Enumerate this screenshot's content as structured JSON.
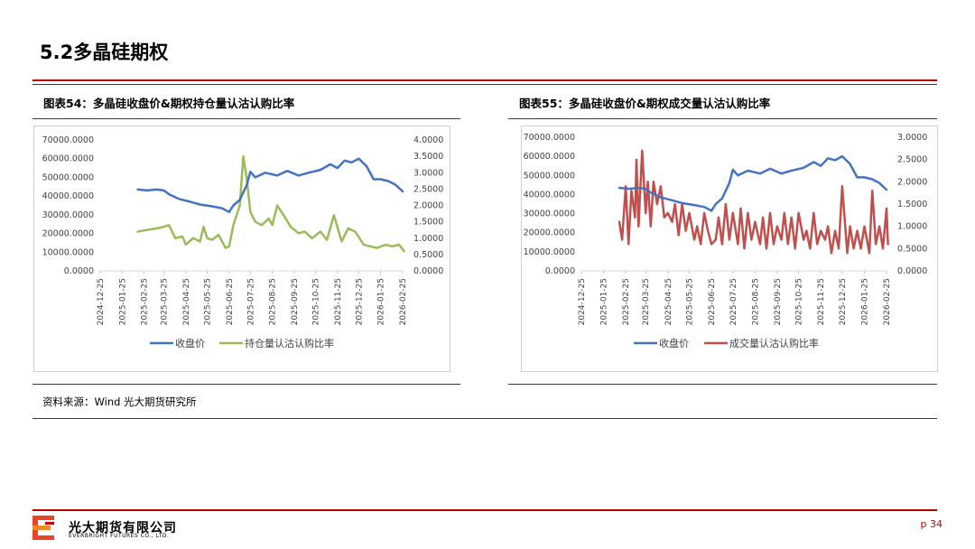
{
  "section_title": "5.2多晶硅期权",
  "source": "资料来源：Wind 光大期货研究所",
  "footer": {
    "company_cn": "光大期货有限公司",
    "company_en": "EVERBRIGHT FUTURES CO., LTD.",
    "page": "p 34"
  },
  "colors": {
    "accent": "#c00000",
    "price": "#4472c4",
    "oi_ratio": "#9bbb59",
    "vol_ratio": "#c0504d"
  },
  "chart_data": [
    {
      "type": "line",
      "title": "图表54：多晶硅收盘价&期权持仓量认沽认购比率",
      "x_ticks": [
        "2024-12-25",
        "2025-01-25",
        "2025-02-25",
        "2025-03-25",
        "2025-04-25",
        "2025-05-25",
        "2025-06-25",
        "2025-07-25",
        "2025-08-25",
        "2025-09-25",
        "2025-10-25",
        "2025-11-25",
        "2025-12-25",
        "2026-01-25",
        "2026-02-25"
      ],
      "y_left": {
        "min": 0,
        "max": 70000,
        "ticks": [
          "0.0000",
          "10000.0000",
          "20000.0000",
          "30000.0000",
          "40000.0000",
          "50000.0000",
          "60000.0000",
          "70000.0000"
        ]
      },
      "y_right": {
        "min": 0,
        "max": 4,
        "ticks": [
          "0.0000",
          "0.5000",
          "1.0000",
          "1.5000",
          "2.0000",
          "2.5000",
          "3.0000",
          "3.5000",
          "4.0000"
        ]
      },
      "legend": [
        "收盘价",
        "持仓量认沽认购比率"
      ],
      "legend_position": "bottom",
      "series": [
        {
          "name": "收盘价",
          "axis": "left",
          "x": [
            "2025-02-16",
            "2025-03-01",
            "2025-03-15",
            "2025-03-25",
            "2025-04-01",
            "2025-04-15",
            "2025-05-01",
            "2025-05-15",
            "2025-06-01",
            "2025-06-15",
            "2025-06-25",
            "2025-07-01",
            "2025-07-10",
            "2025-07-20",
            "2025-07-25",
            "2025-08-01",
            "2025-08-15",
            "2025-09-01",
            "2025-09-15",
            "2025-10-01",
            "2025-10-15",
            "2025-11-01",
            "2025-11-15",
            "2025-11-25",
            "2025-12-05",
            "2025-12-15",
            "2025-12-25",
            "2026-01-05",
            "2026-01-15",
            "2026-01-25",
            "2026-02-05",
            "2026-02-15",
            "2026-02-25"
          ],
          "values": [
            43500,
            43000,
            43500,
            43000,
            41000,
            38500,
            37000,
            35500,
            34500,
            33500,
            31500,
            35000,
            38000,
            46000,
            53000,
            50000,
            52500,
            51000,
            53500,
            51000,
            52500,
            54000,
            57000,
            55000,
            59000,
            58000,
            60000,
            56000,
            49000,
            49000,
            48000,
            46000,
            42500
          ]
        },
        {
          "name": "持仓量认沽认购比率",
          "axis": "right",
          "x": [
            "2025-02-16",
            "2025-03-01",
            "2025-03-15",
            "2025-03-25",
            "2025-04-01",
            "2025-04-10",
            "2025-04-20",
            "2025-04-25",
            "2025-05-05",
            "2025-05-15",
            "2025-05-20",
            "2025-05-25",
            "2025-06-01",
            "2025-06-10",
            "2025-06-20",
            "2025-06-25",
            "2025-07-01",
            "2025-07-10",
            "2025-07-15",
            "2025-07-20",
            "2025-07-25",
            "2025-08-01",
            "2025-08-10",
            "2025-08-20",
            "2025-08-25",
            "2025-09-01",
            "2025-09-10",
            "2025-09-20",
            "2025-10-01",
            "2025-10-10",
            "2025-10-20",
            "2025-11-01",
            "2025-11-10",
            "2025-11-20",
            "2025-12-01",
            "2025-12-10",
            "2025-12-20",
            "2026-01-01",
            "2026-01-10",
            "2026-01-20",
            "2026-02-01",
            "2026-02-10",
            "2026-02-20",
            "2026-02-27"
          ],
          "values": [
            1.2,
            1.25,
            1.3,
            1.35,
            1.4,
            1.0,
            1.05,
            0.8,
            1.0,
            0.9,
            1.35,
            1.0,
            0.95,
            1.1,
            0.7,
            0.75,
            1.4,
            2.0,
            3.5,
            2.8,
            1.8,
            1.5,
            1.4,
            1.6,
            1.4,
            2.0,
            1.7,
            1.35,
            1.15,
            1.2,
            1.0,
            1.2,
            0.95,
            1.7,
            0.9,
            1.3,
            1.2,
            0.8,
            0.75,
            0.7,
            0.8,
            0.75,
            0.8,
            0.6
          ]
        }
      ]
    },
    {
      "type": "line",
      "title": "图表55：多晶硅收盘价&期权成交量认沽认购比率",
      "x_ticks": [
        "2024-12-25",
        "2025-01-25",
        "2025-02-25",
        "2025-03-25",
        "2025-04-25",
        "2025-05-25",
        "2025-06-25",
        "2025-07-25",
        "2025-08-25",
        "2025-09-25",
        "2025-10-25",
        "2025-11-25",
        "2025-12-25",
        "2026-01-25",
        "2026-02-25"
      ],
      "y_left": {
        "min": 0,
        "max": 70000,
        "ticks": [
          "0.0000",
          "10000.0000",
          "20000.0000",
          "30000.0000",
          "40000.0000",
          "50000.0000",
          "60000.0000",
          "70000.0000"
        ]
      },
      "y_right": {
        "min": 0,
        "max": 3,
        "ticks": [
          "0.0000",
          "0.5000",
          "1.0000",
          "1.5000",
          "2.0000",
          "2.5000",
          "3.0000"
        ]
      },
      "legend": [
        "收盘价",
        "成交量认沽认购比率"
      ],
      "legend_position": "bottom",
      "series": [
        {
          "name": "收盘价",
          "axis": "left",
          "x": [
            "2025-02-16",
            "2025-03-01",
            "2025-03-15",
            "2025-03-25",
            "2025-04-01",
            "2025-04-15",
            "2025-05-01",
            "2025-05-15",
            "2025-06-01",
            "2025-06-15",
            "2025-06-25",
            "2025-07-01",
            "2025-07-10",
            "2025-07-20",
            "2025-07-25",
            "2025-08-01",
            "2025-08-15",
            "2025-09-01",
            "2025-09-15",
            "2025-10-01",
            "2025-10-15",
            "2025-11-01",
            "2025-11-15",
            "2025-11-25",
            "2025-12-05",
            "2025-12-15",
            "2025-12-25",
            "2026-01-05",
            "2026-01-15",
            "2026-01-25",
            "2026-02-05",
            "2026-02-15",
            "2026-02-25"
          ],
          "values": [
            43500,
            43000,
            43500,
            43000,
            41000,
            38500,
            37000,
            35500,
            34500,
            33500,
            31500,
            35000,
            38000,
            46000,
            53000,
            50000,
            52500,
            51000,
            53500,
            51000,
            52500,
            54000,
            57000,
            55000,
            59000,
            58000,
            60000,
            56000,
            49000,
            49000,
            48000,
            46000,
            42500
          ]
        },
        {
          "name": "成交量认沽认购比率",
          "axis": "right",
          "x": [
            "2025-02-16",
            "2025-02-20",
            "2025-02-25",
            "2025-03-01",
            "2025-03-05",
            "2025-03-10",
            "2025-03-12",
            "2025-03-15",
            "2025-03-20",
            "2025-03-25",
            "2025-03-28",
            "2025-04-01",
            "2025-04-05",
            "2025-04-10",
            "2025-04-15",
            "2025-04-20",
            "2025-04-25",
            "2025-05-01",
            "2025-05-05",
            "2025-05-10",
            "2025-05-15",
            "2025-05-20",
            "2025-05-25",
            "2025-06-01",
            "2025-06-05",
            "2025-06-10",
            "2025-06-15",
            "2025-06-20",
            "2025-06-25",
            "2025-07-01",
            "2025-07-05",
            "2025-07-10",
            "2025-07-15",
            "2025-07-20",
            "2025-07-25",
            "2025-08-01",
            "2025-08-05",
            "2025-08-10",
            "2025-08-15",
            "2025-08-20",
            "2025-08-25",
            "2025-09-01",
            "2025-09-05",
            "2025-09-10",
            "2025-09-15",
            "2025-09-20",
            "2025-09-25",
            "2025-10-01",
            "2025-10-05",
            "2025-10-10",
            "2025-10-15",
            "2025-10-20",
            "2025-10-25",
            "2025-11-01",
            "2025-11-05",
            "2025-11-10",
            "2025-11-15",
            "2025-11-20",
            "2025-11-25",
            "2025-12-01",
            "2025-12-05",
            "2025-12-10",
            "2025-12-15",
            "2025-12-20",
            "2025-12-25",
            "2026-01-01",
            "2026-01-05",
            "2026-01-10",
            "2026-01-15",
            "2026-01-20",
            "2026-01-25",
            "2026-02-01",
            "2026-02-05",
            "2026-02-10",
            "2026-02-15",
            "2026-02-20",
            "2026-02-25",
            "2026-02-27"
          ],
          "values": [
            1.1,
            0.7,
            1.9,
            0.6,
            1.8,
            1.2,
            2.5,
            1.0,
            2.7,
            1.3,
            2.0,
            1.0,
            2.0,
            1.5,
            1.9,
            1.2,
            1.3,
            1.1,
            1.5,
            0.8,
            1.5,
            0.9,
            1.3,
            0.7,
            1.0,
            0.6,
            1.3,
            0.9,
            0.6,
            0.7,
            1.2,
            0.6,
            1.5,
            0.7,
            1.3,
            0.6,
            1.4,
            0.5,
            1.3,
            0.7,
            1.1,
            0.6,
            1.2,
            0.5,
            1.3,
            0.6,
            1.0,
            0.7,
            1.3,
            0.6,
            1.2,
            0.5,
            1.3,
            0.7,
            0.9,
            0.5,
            1.3,
            0.6,
            0.9,
            0.7,
            1.0,
            0.4,
            0.9,
            0.5,
            1.9,
            0.4,
            1.0,
            0.5,
            0.9,
            0.5,
            1.0,
            0.4,
            1.8,
            0.6,
            1.0,
            0.5,
            1.4,
            0.6
          ]
        }
      ]
    }
  ]
}
